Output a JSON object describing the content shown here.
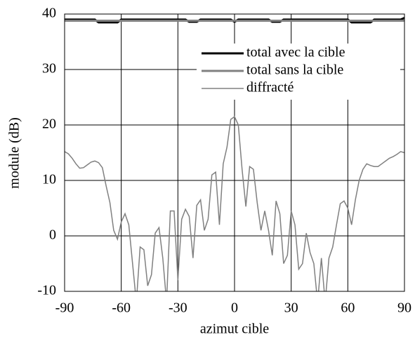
{
  "chart_data": {
    "type": "line",
    "xlabel": "azimut cible",
    "ylabel": "module (dB)",
    "x": [
      -90,
      -88,
      -86,
      -84,
      -82,
      -80,
      -78,
      -76,
      -74,
      -72,
      -70,
      -68,
      -66,
      -64,
      -62,
      -60,
      -58,
      -56,
      -54,
      -52,
      -50,
      -48,
      -46,
      -44,
      -42,
      -40,
      -38,
      -36,
      -34,
      -32,
      -30,
      -28,
      -26,
      -24,
      -22,
      -20,
      -18,
      -16,
      -14,
      -12,
      -10,
      -8,
      -6,
      -4,
      -2,
      0,
      2,
      4,
      6,
      8,
      10,
      12,
      14,
      16,
      18,
      20,
      22,
      24,
      26,
      28,
      30,
      32,
      34,
      36,
      38,
      40,
      42,
      44,
      46,
      48,
      50,
      52,
      54,
      56,
      58,
      60,
      62,
      64,
      66,
      68,
      70,
      72,
      74,
      76,
      78,
      80,
      82,
      84,
      86,
      88,
      90
    ],
    "series": [
      {
        "name": "total avec la cible",
        "color": "#000000",
        "values": [
          39,
          39,
          39,
          39,
          39,
          39,
          39,
          39,
          39,
          38.5,
          38.5,
          38.5,
          38.5,
          38.5,
          38.5,
          39,
          39,
          39,
          39,
          39,
          39,
          39,
          39,
          39,
          39,
          39,
          39,
          39,
          39,
          39,
          39,
          39,
          39,
          38.6,
          38.6,
          38.6,
          39,
          39,
          39,
          39,
          39,
          39,
          39,
          39,
          39,
          38.6,
          39,
          39,
          39,
          39,
          39,
          39,
          39,
          39,
          39,
          38.6,
          38.6,
          38.6,
          39,
          39,
          39,
          39,
          39,
          39,
          39,
          39,
          39,
          39,
          39,
          39,
          39,
          39,
          39,
          39,
          39,
          39,
          38.5,
          38.5,
          38.5,
          38.5,
          38.5,
          38.5,
          39,
          39,
          39,
          39,
          39,
          39,
          39,
          39,
          39.3
        ]
      },
      {
        "name": "total sans la cible",
        "color": "#808080",
        "values": [
          38.8,
          38.8,
          38.8,
          38.8,
          38.8,
          38.8,
          38.8,
          38.8,
          38.8,
          38.8,
          38.8,
          38.8,
          38.8,
          38.8,
          38.8,
          38.8,
          38.8,
          38.8,
          38.8,
          38.8,
          38.8,
          38.8,
          38.8,
          38.8,
          38.8,
          38.8,
          38.8,
          38.8,
          38.8,
          38.8,
          38.8,
          38.8,
          38.8,
          38.8,
          38.8,
          38.8,
          38.8,
          38.8,
          38.8,
          38.8,
          38.8,
          38.8,
          38.8,
          38.8,
          38.8,
          38.8,
          38.8,
          38.8,
          38.8,
          38.8,
          38.8,
          38.8,
          38.8,
          38.8,
          38.8,
          38.8,
          38.8,
          38.8,
          38.8,
          38.8,
          38.8,
          38.8,
          38.8,
          38.8,
          38.8,
          38.8,
          38.8,
          38.8,
          38.8,
          38.8,
          38.8,
          38.8,
          38.8,
          38.8,
          38.8,
          38.8,
          38.8,
          38.8,
          38.8,
          38.8,
          38.8,
          38.8,
          38.8,
          38.8,
          38.8,
          38.8,
          38.8,
          38.8,
          38.8,
          38.8,
          38.8
        ]
      },
      {
        "name": "diffracté",
        "color": "#808080",
        "values": [
          15.2,
          14.8,
          14,
          13,
          12.2,
          12.3,
          12.8,
          13.3,
          13.5,
          13.2,
          12.3,
          9,
          6,
          1,
          -0.6,
          2.5,
          4,
          2,
          -5,
          -12,
          -2,
          -2.5,
          -9,
          -7,
          0.5,
          1.5,
          -4,
          -12,
          4.5,
          4.5,
          -8,
          3,
          4.8,
          3.5,
          -4,
          5.5,
          6.5,
          1,
          3,
          11,
          11.5,
          2,
          13,
          16,
          21,
          21.5,
          20,
          12,
          5.3,
          12.5,
          12,
          6,
          1,
          4.5,
          1,
          -3.5,
          6.3,
          4,
          -5,
          -3.5,
          4.5,
          2,
          -6,
          -5,
          0.5,
          -3,
          -5,
          -12,
          -4,
          -12,
          -4,
          -2,
          2,
          5.8,
          6.3,
          5,
          2,
          6.5,
          10,
          12,
          13,
          12.7,
          12.5,
          12.5,
          13,
          13.5,
          14,
          14.3,
          14.7,
          15.2,
          15
        ]
      }
    ],
    "xlim": [
      -90,
      90
    ],
    "xticks": [
      -90,
      -60,
      -30,
      0,
      30,
      60,
      90
    ],
    "ylim": [
      -10,
      40
    ],
    "yticks": [
      -10,
      0,
      10,
      20,
      30,
      40
    ],
    "grid": true,
    "legend": "upper right"
  }
}
